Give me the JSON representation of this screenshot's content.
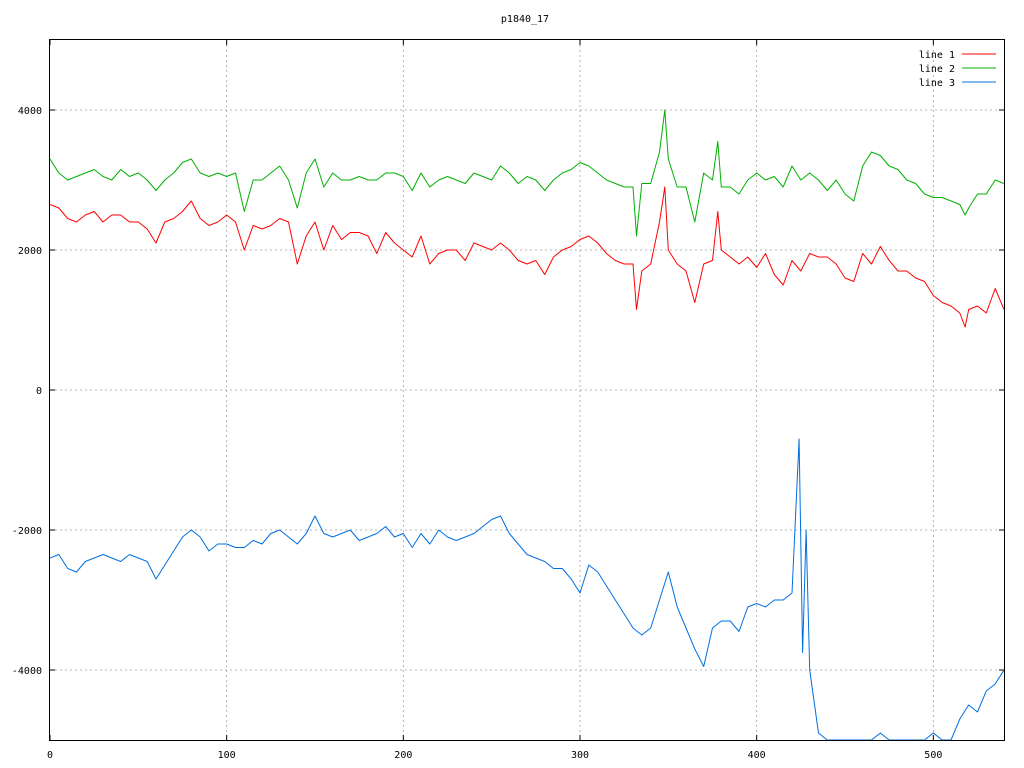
{
  "chart_data": {
    "type": "line",
    "title": "p1840_17",
    "xlabel": "",
    "ylabel": "",
    "xlim": [
      0,
      540
    ],
    "ylim": [
      -5000,
      5000
    ],
    "xticks": [
      0,
      100,
      200,
      300,
      400,
      500
    ],
    "yticks": [
      -4000,
      -2000,
      0,
      2000,
      4000
    ],
    "grid": true,
    "legend_position": "top-right",
    "series": [
      {
        "name": "line 1",
        "color": "#ff0000",
        "x": [
          0,
          5,
          10,
          15,
          20,
          25,
          30,
          35,
          40,
          45,
          50,
          55,
          60,
          65,
          70,
          75,
          80,
          85,
          90,
          95,
          100,
          105,
          110,
          115,
          120,
          125,
          130,
          135,
          140,
          145,
          150,
          155,
          160,
          165,
          170,
          175,
          180,
          185,
          190,
          195,
          200,
          205,
          210,
          215,
          220,
          225,
          230,
          235,
          240,
          245,
          250,
          255,
          260,
          265,
          270,
          275,
          280,
          285,
          290,
          295,
          300,
          305,
          310,
          315,
          320,
          325,
          330,
          332,
          335,
          340,
          345,
          348,
          350,
          355,
          360,
          365,
          370,
          375,
          378,
          380,
          385,
          390,
          395,
          400,
          405,
          410,
          415,
          420,
          425,
          430,
          435,
          440,
          445,
          450,
          455,
          460,
          465,
          470,
          475,
          480,
          485,
          490,
          495,
          500,
          505,
          510,
          515,
          518,
          520,
          525,
          530,
          535,
          540
        ],
        "y": [
          2650,
          2600,
          2450,
          2400,
          2500,
          2550,
          2400,
          2500,
          2500,
          2400,
          2400,
          2300,
          2100,
          2400,
          2450,
          2550,
          2700,
          2450,
          2350,
          2400,
          2500,
          2400,
          2000,
          2350,
          2300,
          2350,
          2450,
          2400,
          1800,
          2200,
          2400,
          2000,
          2350,
          2150,
          2250,
          2250,
          2200,
          1950,
          2250,
          2100,
          2000,
          1900,
          2200,
          1800,
          1950,
          2000,
          2000,
          1850,
          2100,
          2050,
          2000,
          2100,
          2000,
          1850,
          1800,
          1850,
          1650,
          1900,
          2000,
          2050,
          2150,
          2200,
          2100,
          1950,
          1850,
          1800,
          1800,
          1150,
          1700,
          1800,
          2400,
          2900,
          2000,
          1800,
          1700,
          1250,
          1800,
          1850,
          2550,
          2000,
          1900,
          1800,
          1900,
          1750,
          1950,
          1650,
          1500,
          1850,
          1700,
          1950,
          1900,
          1900,
          1800,
          1600,
          1550,
          1950,
          1800,
          2050,
          1850,
          1700,
          1700,
          1600,
          1550,
          1350,
          1250,
          1200,
          1100,
          900,
          1150,
          1200,
          1100,
          1450,
          1150
        ]
      },
      {
        "name": "line 2",
        "color": "#00b000",
        "x": [
          0,
          5,
          10,
          15,
          20,
          25,
          30,
          35,
          40,
          45,
          50,
          55,
          60,
          65,
          70,
          75,
          80,
          85,
          90,
          95,
          100,
          105,
          110,
          115,
          120,
          125,
          130,
          135,
          140,
          145,
          150,
          155,
          160,
          165,
          170,
          175,
          180,
          185,
          190,
          195,
          200,
          205,
          210,
          215,
          220,
          225,
          230,
          235,
          240,
          245,
          250,
          255,
          260,
          265,
          270,
          275,
          280,
          285,
          290,
          295,
          300,
          305,
          310,
          315,
          320,
          325,
          330,
          332,
          335,
          340,
          345,
          348,
          350,
          355,
          360,
          365,
          370,
          375,
          378,
          380,
          385,
          390,
          395,
          400,
          405,
          410,
          415,
          420,
          425,
          430,
          435,
          440,
          445,
          450,
          455,
          460,
          465,
          470,
          475,
          480,
          485,
          490,
          495,
          500,
          505,
          510,
          515,
          518,
          520,
          525,
          530,
          535,
          540
        ],
        "y": [
          3300,
          3100,
          3000,
          3050,
          3100,
          3150,
          3050,
          3000,
          3150,
          3050,
          3100,
          3000,
          2850,
          3000,
          3100,
          3250,
          3300,
          3100,
          3050,
          3100,
          3050,
          3100,
          2550,
          3000,
          3000,
          3100,
          3200,
          3000,
          2600,
          3100,
          3300,
          2900,
          3100,
          3000,
          3000,
          3050,
          3000,
          3000,
          3100,
          3100,
          3050,
          2850,
          3100,
          2900,
          3000,
          3050,
          3000,
          2950,
          3100,
          3050,
          3000,
          3200,
          3100,
          2950,
          3050,
          3000,
          2850,
          3000,
          3100,
          3150,
          3250,
          3200,
          3100,
          3000,
          2950,
          2900,
          2900,
          2200,
          2950,
          2950,
          3400,
          4000,
          3300,
          2900,
          2900,
          2400,
          3100,
          3000,
          3550,
          2900,
          2900,
          2800,
          3000,
          3100,
          3000,
          3050,
          2900,
          3200,
          3000,
          3100,
          3000,
          2850,
          3000,
          2800,
          2700,
          3200,
          3400,
          3350,
          3200,
          3150,
          3000,
          2950,
          2800,
          2750,
          2750,
          2700,
          2650,
          2500,
          2600,
          2800,
          2800,
          3000,
          2950
        ]
      },
      {
        "name": "line 3",
        "color": "#0070e0",
        "x": [
          0,
          5,
          10,
          15,
          20,
          25,
          30,
          35,
          40,
          45,
          50,
          55,
          60,
          65,
          70,
          75,
          80,
          85,
          90,
          95,
          100,
          105,
          110,
          115,
          120,
          125,
          130,
          135,
          140,
          145,
          150,
          155,
          160,
          165,
          170,
          175,
          180,
          185,
          190,
          195,
          200,
          205,
          210,
          215,
          220,
          225,
          230,
          235,
          240,
          245,
          250,
          255,
          260,
          265,
          270,
          275,
          280,
          285,
          290,
          295,
          300,
          305,
          310,
          315,
          320,
          325,
          330,
          335,
          340,
          345,
          350,
          355,
          360,
          365,
          370,
          375,
          380,
          385,
          390,
          395,
          400,
          405,
          410,
          415,
          420,
          424,
          426,
          428,
          430,
          435,
          440,
          445,
          450,
          455,
          460,
          465,
          470,
          475,
          480,
          485,
          490,
          495,
          500,
          505,
          510,
          515,
          520,
          525,
          530,
          535,
          540
        ],
        "y": [
          -2400,
          -2350,
          -2550,
          -2600,
          -2450,
          -2400,
          -2350,
          -2400,
          -2450,
          -2350,
          -2400,
          -2450,
          -2700,
          -2500,
          -2300,
          -2100,
          -2000,
          -2100,
          -2300,
          -2200,
          -2200,
          -2250,
          -2250,
          -2150,
          -2200,
          -2050,
          -2000,
          -2100,
          -2200,
          -2050,
          -1800,
          -2050,
          -2100,
          -2050,
          -2000,
          -2150,
          -2100,
          -2050,
          -1950,
          -2100,
          -2050,
          -2250,
          -2050,
          -2200,
          -2000,
          -2100,
          -2150,
          -2100,
          -2050,
          -1950,
          -1850,
          -1800,
          -2050,
          -2200,
          -2350,
          -2400,
          -2450,
          -2550,
          -2550,
          -2700,
          -2900,
          -2500,
          -2600,
          -2800,
          -3000,
          -3200,
          -3400,
          -3500,
          -3400,
          -3000,
          -2600,
          -3100,
          -3400,
          -3700,
          -3950,
          -3400,
          -3300,
          -3300,
          -3450,
          -3100,
          -3050,
          -3100,
          -3000,
          -3000,
          -2900,
          -700,
          -3750,
          -2000,
          -4000,
          -4900,
          -5000,
          -5000,
          -5000,
          -5000,
          -5000,
          -5000,
          -4900,
          -5000,
          -5000,
          -5000,
          -5000,
          -5000,
          -4900,
          -5000,
          -5000,
          -4700,
          -4500,
          -4600,
          -4300,
          -4200,
          -4000
        ]
      }
    ]
  }
}
